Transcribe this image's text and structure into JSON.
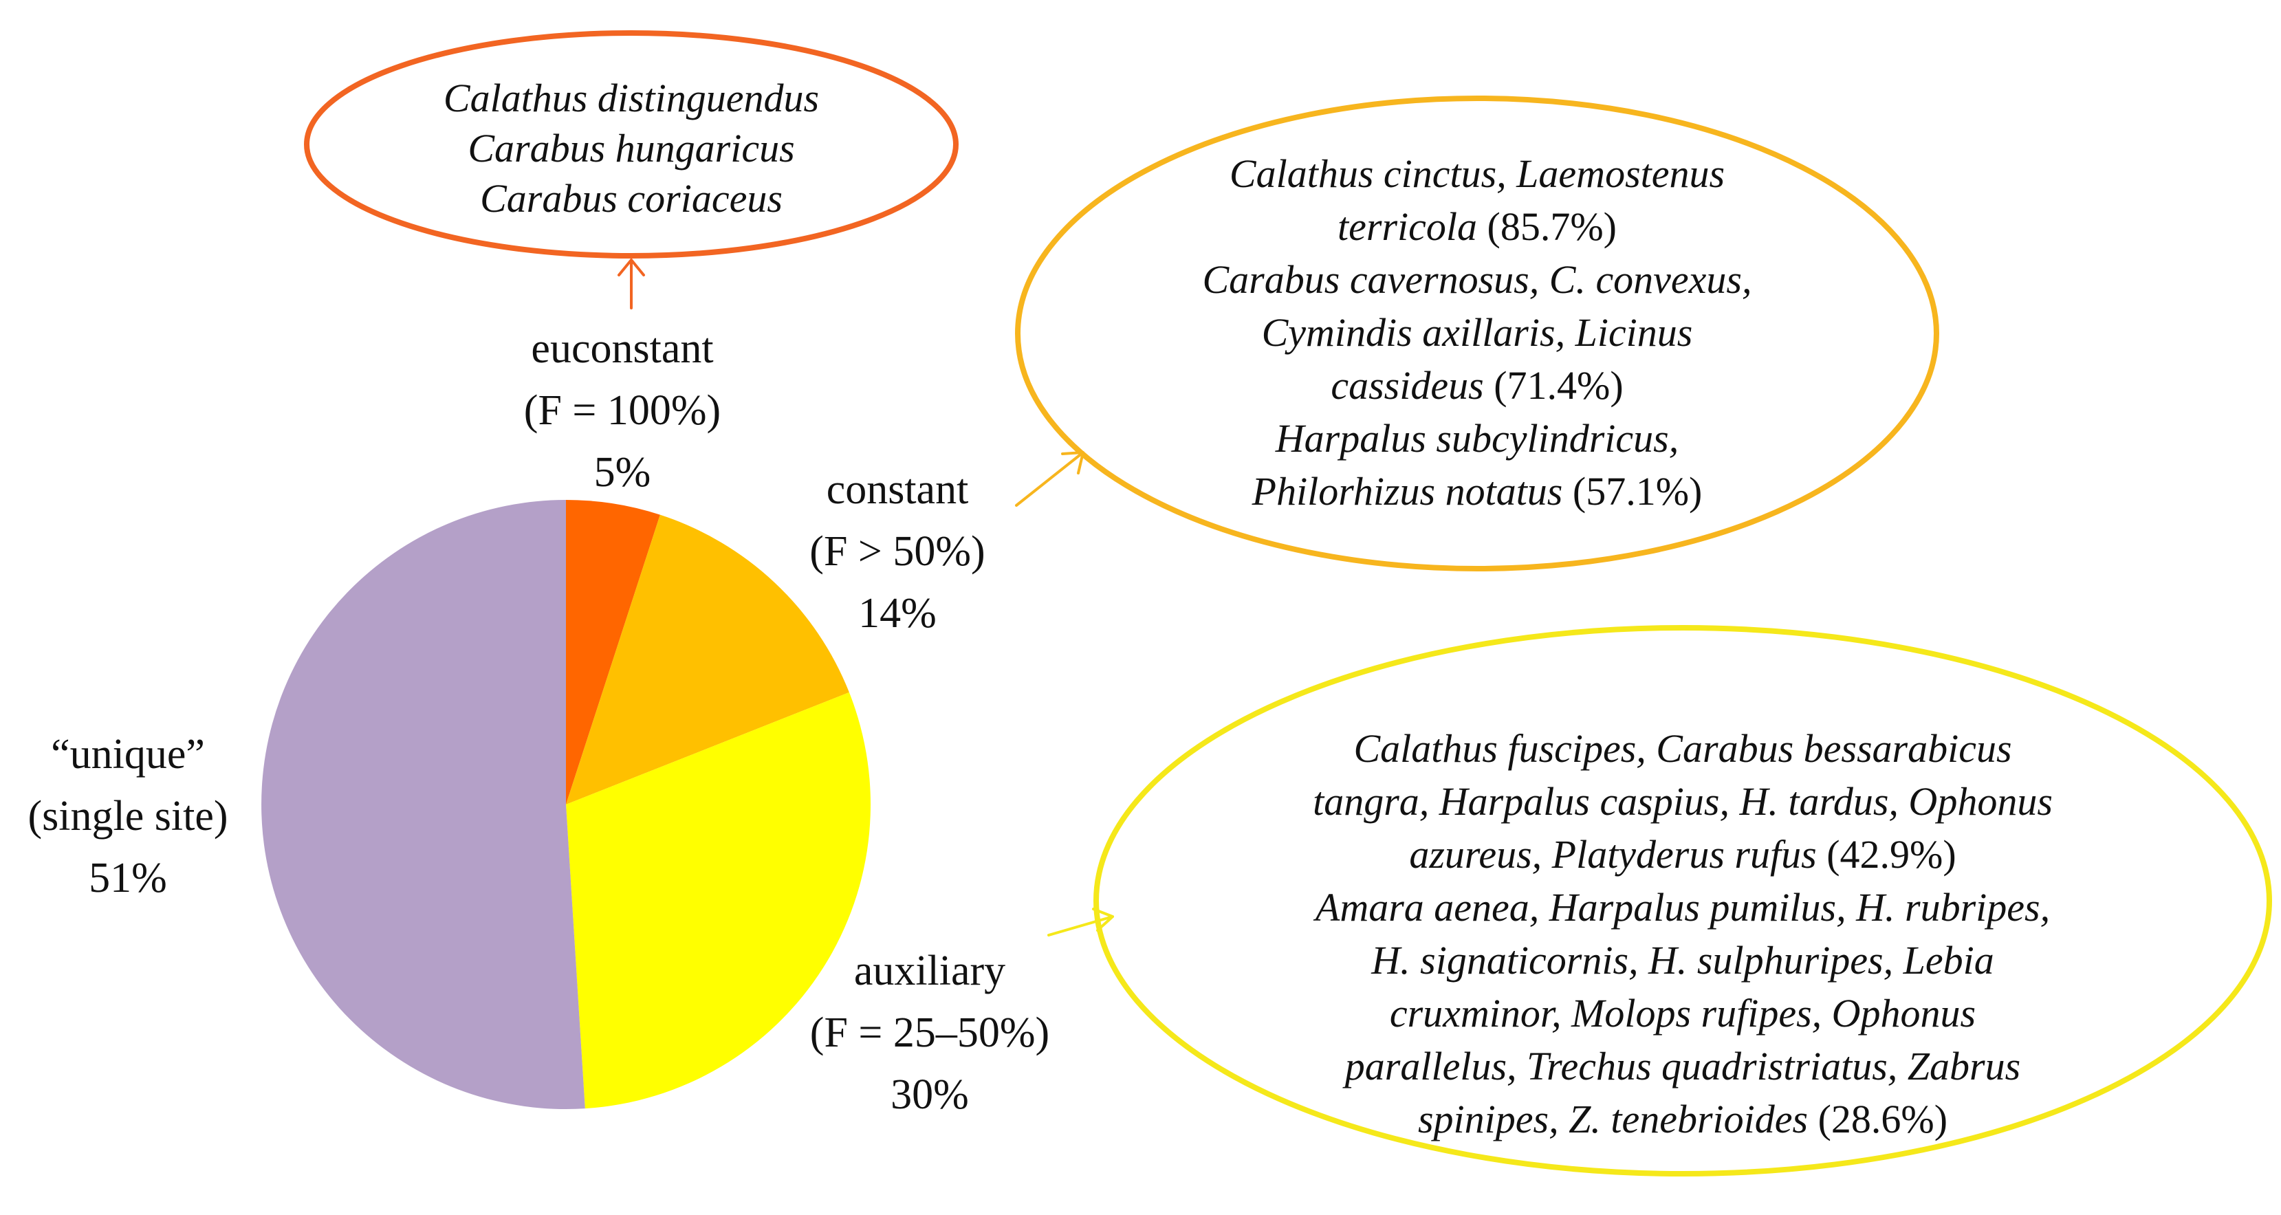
{
  "chart_data": {
    "type": "pie",
    "slices": [
      {
        "name": "euconstant",
        "criterion": "(F = 100%)",
        "value": 5,
        "value_label": "5%",
        "color": "#FF6600"
      },
      {
        "name": "constant",
        "criterion": "(F > 50%)",
        "value": 14,
        "value_label": "14%",
        "color": "#FFC000"
      },
      {
        "name": "auxiliary",
        "criterion": "(F = 25–50%)",
        "value": 30,
        "value_label": "30%",
        "color": "#FFFF00"
      },
      {
        "name": "“unique”",
        "criterion": "(single site)",
        "value": 51,
        "value_label": "51%",
        "color": "#B4A0C8"
      }
    ],
    "annotations": [
      {
        "slice": "euconstant",
        "border_color": "#F26522",
        "lines": [
          [
            {
              "t": "Calathus distinguendus",
              "i": true
            }
          ],
          [
            {
              "t": "Carabus hungaricus",
              "i": true
            }
          ],
          [
            {
              "t": "Carabus coriaceus",
              "i": true
            }
          ]
        ]
      },
      {
        "slice": "constant",
        "border_color": "#F7B51E",
        "lines": [
          [
            {
              "t": "Calathus cinctus, Laemostenus",
              "i": true
            }
          ],
          [
            {
              "t": "terricola",
              "i": true
            },
            {
              "t": " (85.7%)",
              "i": false
            }
          ],
          [
            {
              "t": "Carabus cavernosus, C. convexus,",
              "i": true
            }
          ],
          [
            {
              "t": "Cymindis axillaris, Licinus",
              "i": true
            }
          ],
          [
            {
              "t": "cassideus",
              "i": true
            },
            {
              "t": " (71.4%)",
              "i": false
            }
          ],
          [
            {
              "t": "Harpalus subcylindricus,",
              "i": true
            }
          ],
          [
            {
              "t": "Philorhizus notatus",
              "i": true
            },
            {
              "t": " (57.1%)",
              "i": false
            }
          ]
        ]
      },
      {
        "slice": "auxiliary",
        "border_color": "#F5E81A",
        "lines": [
          [
            {
              "t": "Calathus fuscipes, Carabus bessarabicus",
              "i": true
            }
          ],
          [
            {
              "t": "tangra, Harpalus caspius, H. tardus, Ophonus",
              "i": true
            }
          ],
          [
            {
              "t": "azureus, Platyderus rufus",
              "i": true
            },
            {
              "t": " (42.9%)",
              "i": false
            }
          ],
          [
            {
              "t": "Amara aenea, Harpalus pumilus, H. rubripes,",
              "i": true
            }
          ],
          [
            {
              "t": "H. signaticornis, H. sulphuripes, Lebia",
              "i": true
            }
          ],
          [
            {
              "t": "cruxminor, Molops rufipes, Ophonus",
              "i": true
            }
          ],
          [
            {
              "t": "parallelus, Trechus quadristriatus, Zabrus",
              "i": true
            }
          ],
          [
            {
              "t": "spinipes, Z. tenebrioides",
              "i": true
            },
            {
              "t": " (28.6%)",
              "i": false
            }
          ]
        ]
      }
    ]
  }
}
